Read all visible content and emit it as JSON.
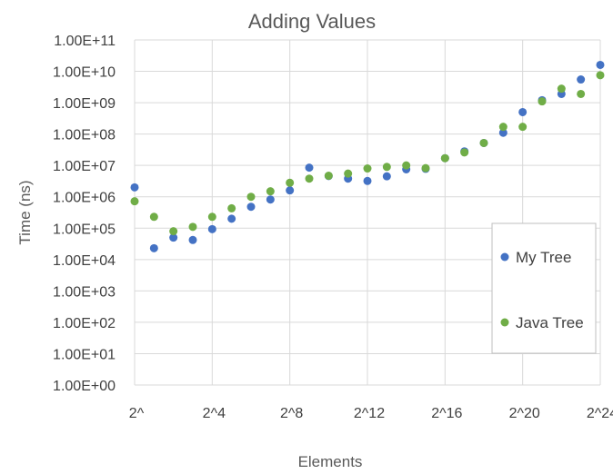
{
  "chart_data": {
    "type": "scatter",
    "title": "Adding Values",
    "xlabel": "Elements",
    "ylabel": "Time (ns)",
    "y_scale": "log",
    "ylim": [
      1,
      100000000000
    ],
    "xlim": [
      0,
      24
    ],
    "grid": true,
    "legend_position": "right",
    "x_tick_values": [
      0,
      4,
      8,
      12,
      16,
      20,
      24
    ],
    "x_tick_labels": [
      "2^",
      "2^4",
      "2^8",
      "2^12",
      "2^16",
      "2^20",
      "2^24"
    ],
    "y_tick_values": [
      1,
      10,
      100,
      1000,
      10000,
      100000,
      1000000,
      10000000,
      100000000,
      1000000000,
      10000000000,
      100000000000
    ],
    "y_tick_labels": [
      "1.00E+00",
      "1.00E+01",
      "1.00E+02",
      "1.00E+03",
      "1.00E+04",
      "1.00E+05",
      "1.00E+06",
      "1.00E+07",
      "1.00E+08",
      "1.00E+09",
      "1.00E+10",
      "1.00E+11"
    ],
    "series": [
      {
        "name": "My Tree",
        "color": "#4472c4",
        "x": [
          0,
          1,
          2,
          3,
          4,
          5,
          6,
          7,
          8,
          9,
          10,
          11,
          12,
          13,
          14,
          15,
          16,
          17,
          18,
          19,
          20,
          21,
          22,
          23,
          24
        ],
        "y": [
          2000000,
          23000,
          50000,
          42000,
          93000,
          200000,
          480000,
          820000,
          1600000,
          8500000,
          4600000,
          3800000,
          3200000,
          4500000,
          7500000,
          7800000,
          17000000,
          28000000,
          52000000,
          110000000,
          500000000,
          1200000000,
          1900000000,
          5500000000,
          16000000000
        ]
      },
      {
        "name": "Java Tree",
        "color": "#70ad47",
        "x": [
          0,
          1,
          2,
          3,
          4,
          5,
          6,
          7,
          8,
          9,
          10,
          11,
          12,
          13,
          14,
          15,
          16,
          17,
          18,
          19,
          20,
          21,
          22,
          23,
          24
        ],
        "y": [
          720000,
          230000,
          80000,
          110000,
          230000,
          430000,
          1000000,
          1500000,
          2800000,
          3800000,
          4700000,
          5500000,
          8000000,
          9000000,
          10000000,
          8200000,
          17000000,
          26000000,
          52000000,
          170000000,
          170000000,
          1100000000,
          2800000000,
          1900000000,
          7500000000
        ]
      }
    ]
  }
}
